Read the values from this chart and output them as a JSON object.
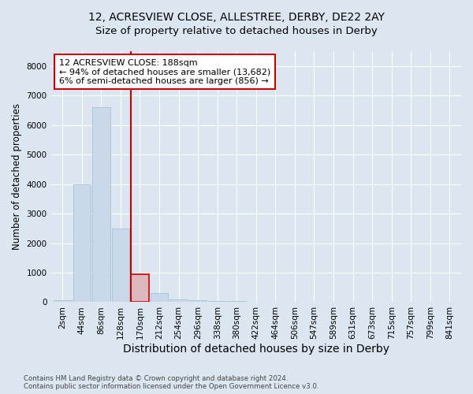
{
  "title1": "12, ACRESVIEW CLOSE, ALLESTREE, DERBY, DE22 2AY",
  "title2": "Size of property relative to detached houses in Derby",
  "xlabel": "Distribution of detached houses by size in Derby",
  "ylabel": "Number of detached properties",
  "footnote": "Contains HM Land Registry data © Crown copyright and database right 2024.\nContains public sector information licensed under the Open Government Licence v3.0.",
  "bin_labels": [
    "2sqm",
    "44sqm",
    "86sqm",
    "128sqm",
    "170sqm",
    "212sqm",
    "254sqm",
    "296sqm",
    "338sqm",
    "380sqm",
    "422sqm",
    "464sqm",
    "506sqm",
    "547sqm",
    "589sqm",
    "631sqm",
    "673sqm",
    "715sqm",
    "757sqm",
    "799sqm",
    "841sqm"
  ],
  "bar_values": [
    75,
    4000,
    6600,
    2500,
    950,
    300,
    100,
    75,
    50,
    50,
    0,
    0,
    0,
    0,
    0,
    0,
    0,
    0,
    0,
    0,
    0
  ],
  "bar_color": "#c9d9ea",
  "bar_edgecolor": "#9bbcd4",
  "highlight_bar_index": 4,
  "highlight_bar_color": "#dbb8be",
  "highlight_bar_edgecolor": "#cc0000",
  "vline_x": 3.52,
  "vline_color": "#cc0000",
  "annotation_text": "12 ACRESVIEW CLOSE: 188sqm\n← 94% of detached houses are smaller (13,682)\n6% of semi-detached houses are larger (856) →",
  "ylim": [
    0,
    8500
  ],
  "yticks": [
    0,
    1000,
    2000,
    3000,
    4000,
    5000,
    6000,
    7000,
    8000
  ],
  "background_color": "#dce6f0",
  "plot_background": "#dce6f0",
  "grid_color": "#ffffff",
  "title1_fontsize": 10,
  "title2_fontsize": 9.5,
  "xlabel_fontsize": 10,
  "ylabel_fontsize": 8.5,
  "tick_fontsize": 7.5,
  "annotation_fontsize": 8
}
